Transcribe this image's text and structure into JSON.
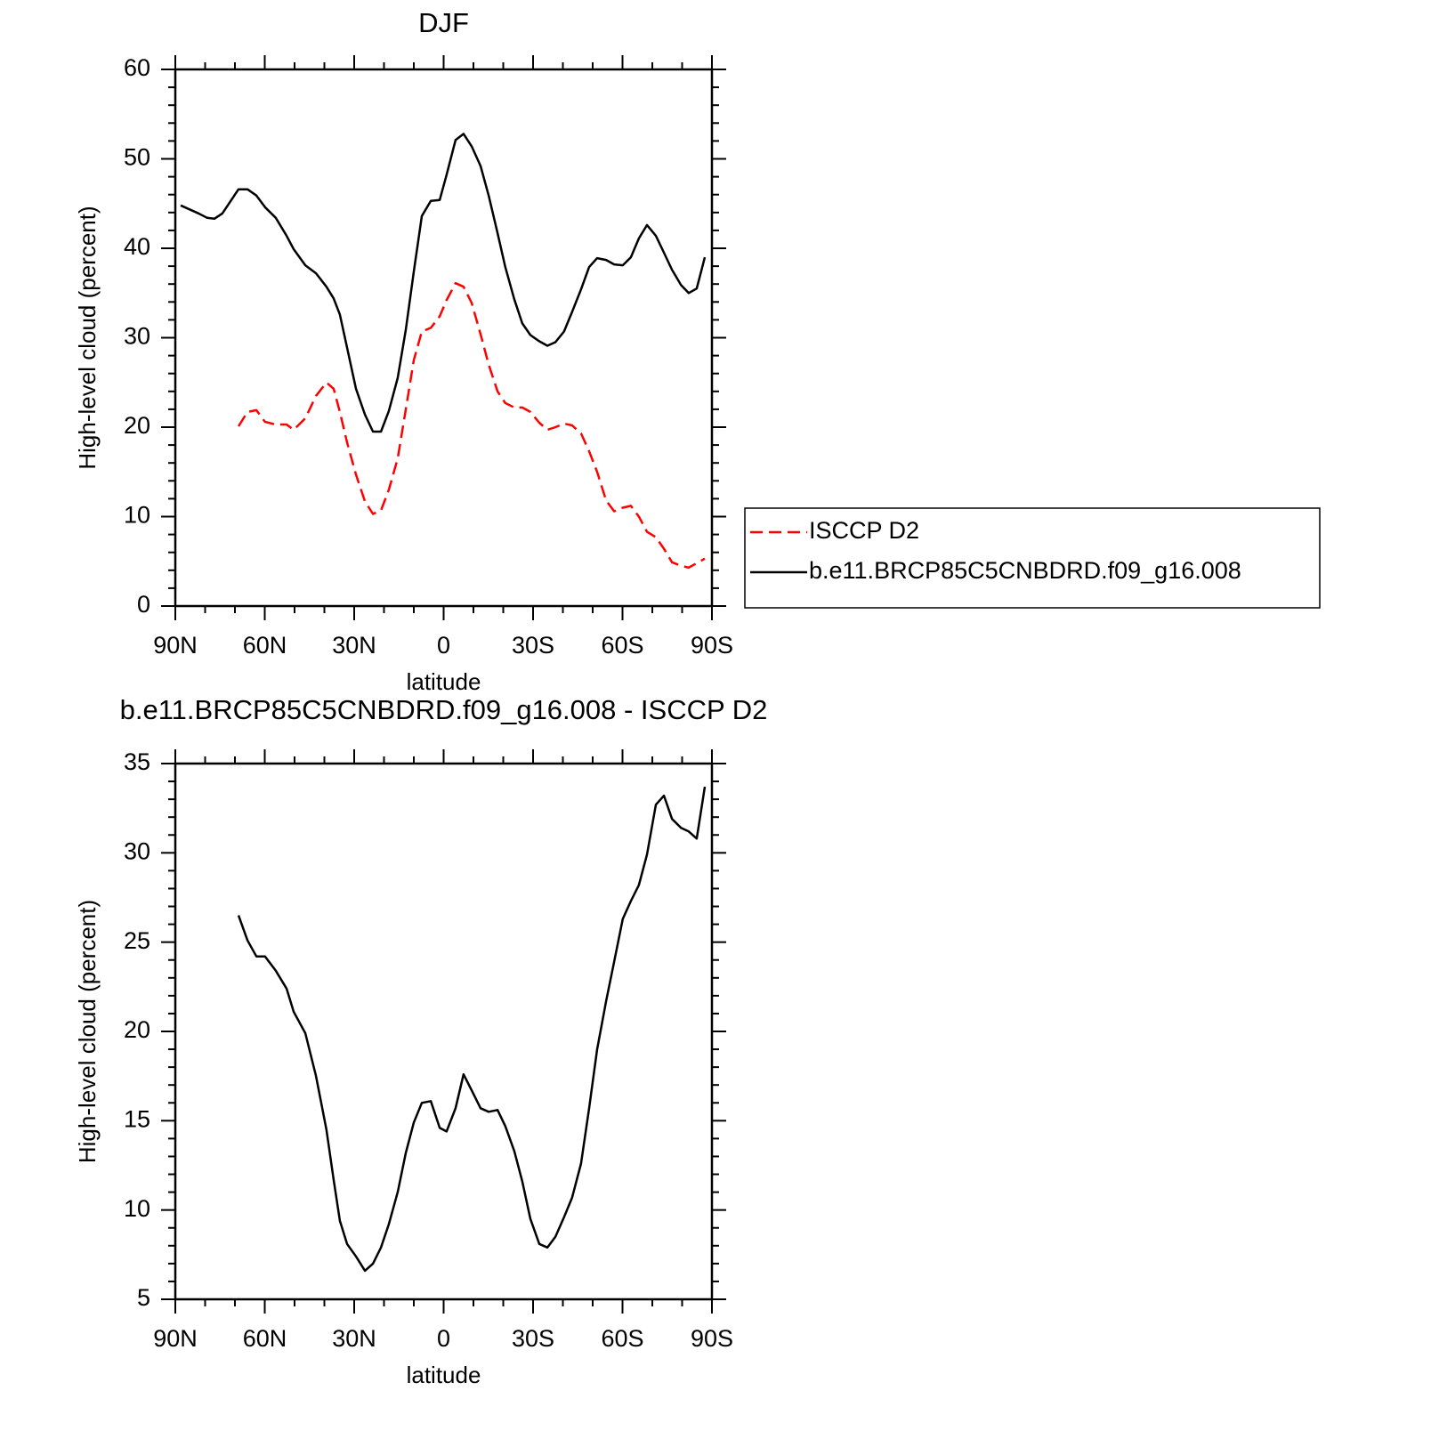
{
  "chart_data": [
    {
      "type": "line",
      "title": "DJF",
      "xlabel": "latitude",
      "ylabel": "High-level cloud (percent)",
      "x": [
        88.2,
        82.2,
        79.3,
        76.9,
        74.2,
        71.2,
        68.8,
        65.8,
        62.8,
        59.9,
        56.3,
        52.7,
        50.3,
        46.4,
        42.8,
        39.3,
        36.9,
        34.8,
        32.4,
        29.4,
        26.4,
        23.7,
        21.0,
        18.4,
        15.4,
        12.7,
        10.0,
        7.3,
        4.3,
        1.3,
        -1.0,
        -4.0,
        -6.7,
        -9.4,
        -12.4,
        -15.1,
        -18.1,
        -20.7,
        -23.7,
        -26.4,
        -29.1,
        -32.1,
        -34.8,
        -37.5,
        -40.4,
        -43.1,
        -46.1,
        -48.8,
        -51.5,
        -54.5,
        -57.2,
        -60.1,
        -62.8,
        -65.5,
        -68.2,
        -71.2,
        -73.9,
        -76.6,
        -79.6,
        -82.2,
        -84.9,
        -87.6
      ],
      "xlim": [
        90,
        -90
      ],
      "xticks": [
        {
          "value": 90,
          "label": "90N"
        },
        {
          "value": 60,
          "label": "60N"
        },
        {
          "value": 30,
          "label": "30N"
        },
        0,
        {
          "value": -30,
          "label": "30S"
        },
        {
          "value": -60,
          "label": "60S"
        },
        {
          "value": -90,
          "label": "90S"
        }
      ],
      "ylim": [
        0,
        60
      ],
      "yticks": [
        0,
        10,
        20,
        30,
        40,
        50,
        60
      ],
      "legend": "right",
      "series": [
        {
          "name": "ISCCP D2",
          "color": "#ff0000",
          "dashed": true,
          "values": [
            null,
            null,
            null,
            null,
            null,
            null,
            20.1,
            21.7,
            21.9,
            20.6,
            20.3,
            20.3,
            19.7,
            21.0,
            23.5,
            25.0,
            24.3,
            21.7,
            18.3,
            14.7,
            11.7,
            10.3,
            10.7,
            13.0,
            16.5,
            22.0,
            27.5,
            30.7,
            31.1,
            32.4,
            34.2,
            36.1,
            35.7,
            33.9,
            30.4,
            27.0,
            24.0,
            22.7,
            22.2,
            22.2,
            21.7,
            20.5,
            19.7,
            20.0,
            20.4,
            20.2,
            19.3,
            17.3,
            15.0,
            11.8,
            10.6,
            11.0,
            11.2,
            10.0,
            8.3,
            7.7,
            6.4,
            4.9,
            4.5,
            4.3,
            4.8,
            5.3
          ]
        },
        {
          "name": "b.e11.BRCP85C5CNBDRD.f09_g16.008",
          "color": "#000000",
          "dashed": false,
          "values": [
            44.8,
            43.9,
            43.4,
            43.3,
            43.9,
            45.4,
            46.6,
            46.6,
            45.9,
            44.6,
            43.4,
            41.4,
            39.9,
            38.1,
            37.2,
            35.7,
            34.4,
            32.6,
            28.9,
            24.3,
            21.4,
            19.5,
            19.5,
            21.8,
            25.5,
            30.9,
            37.4,
            43.6,
            45.3,
            45.4,
            48.2,
            52.1,
            52.8,
            51.4,
            49.2,
            45.9,
            41.7,
            37.9,
            34.3,
            31.6,
            30.3,
            29.6,
            29.1,
            29.5,
            30.7,
            32.9,
            35.4,
            37.9,
            38.9,
            38.7,
            38.2,
            38.1,
            39.0,
            41.1,
            42.6,
            41.4,
            39.5,
            37.6,
            35.9,
            35.0,
            35.5,
            39.0
          ]
        }
      ]
    },
    {
      "type": "line",
      "title": "b.e11.BRCP85C5CNBDRD.f09_g16.008 - ISCCP D2",
      "xlabel": "latitude",
      "ylabel": "High-level cloud (percent)",
      "x": [
        88.2,
        82.2,
        79.3,
        76.9,
        74.2,
        71.2,
        68.8,
        65.8,
        62.8,
        59.9,
        56.3,
        52.7,
        50.3,
        46.4,
        42.8,
        39.3,
        36.9,
        34.8,
        32.4,
        29.4,
        26.4,
        23.7,
        21.0,
        18.4,
        15.4,
        12.7,
        10.0,
        7.3,
        4.3,
        1.3,
        -1.0,
        -4.0,
        -6.7,
        -9.4,
        -12.4,
        -15.1,
        -18.1,
        -20.7,
        -23.7,
        -26.4,
        -29.1,
        -32.1,
        -34.8,
        -37.5,
        -40.4,
        -43.1,
        -46.1,
        -48.8,
        -51.5,
        -54.5,
        -57.2,
        -60.1,
        -62.8,
        -65.5,
        -68.2,
        -71.2,
        -73.9,
        -76.6,
        -79.6,
        -82.2,
        -84.9,
        -87.6
      ],
      "xlim": [
        90,
        -90
      ],
      "xticks": [
        {
          "value": 90,
          "label": "90N"
        },
        {
          "value": 60,
          "label": "60N"
        },
        {
          "value": 30,
          "label": "30N"
        },
        0,
        {
          "value": -30,
          "label": "30S"
        },
        {
          "value": -60,
          "label": "60S"
        },
        {
          "value": -90,
          "label": "90S"
        }
      ],
      "ylim": [
        5,
        35
      ],
      "yticks": [
        5,
        10,
        15,
        20,
        25,
        30,
        35
      ],
      "series": [
        {
          "color": "#000000",
          "dashed": false,
          "values": [
            null,
            null,
            null,
            null,
            null,
            null,
            26.5,
            25.1,
            24.2,
            24.2,
            23.4,
            22.4,
            21.1,
            19.9,
            17.5,
            14.5,
            11.7,
            9.4,
            8.1,
            7.4,
            6.6,
            7.0,
            7.9,
            9.2,
            11.0,
            13.2,
            14.9,
            16.0,
            16.1,
            14.6,
            14.4,
            15.7,
            17.6,
            16.7,
            15.7,
            15.5,
            15.6,
            14.7,
            13.3,
            11.6,
            9.5,
            8.1,
            7.9,
            8.5,
            9.6,
            10.7,
            12.6,
            15.7,
            19.0,
            21.7,
            23.9,
            26.3,
            27.3,
            28.2,
            29.9,
            32.7,
            33.2,
            31.9,
            31.4,
            31.2,
            30.8,
            33.7
          ]
        }
      ]
    }
  ]
}
